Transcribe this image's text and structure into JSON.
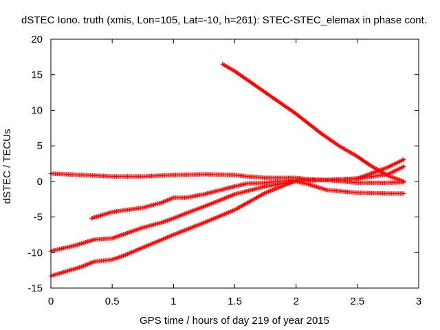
{
  "chart_data": {
    "type": "scatter",
    "title": "dSTEC Iono. truth (xmis, Lon=105, Lat=-10, h=261): STEC-STEC_elemax in phase cont.",
    "xlabel": "GPS time / hours of day 219 of year 2015",
    "ylabel": "dSTEC  / TECUs",
    "xlim": [
      0,
      3
    ],
    "ylim": [
      -15,
      20
    ],
    "x_ticks": [
      0,
      0.5,
      1,
      1.5,
      2,
      2.5,
      3
    ],
    "x_tick_labels": [
      "0",
      "0.5",
      "1",
      "1.5",
      "2",
      "2.5",
      "3"
    ],
    "y_ticks": [
      -15,
      -10,
      -5,
      0,
      5,
      10,
      15,
      20
    ],
    "y_tick_labels": [
      "-15",
      "-10",
      "-5",
      "0",
      "5",
      "10",
      "15",
      "20"
    ],
    "grid": false,
    "marker": "plus",
    "color": "#ff0000",
    "series": [
      {
        "x": [
          0.0,
          0.25,
          0.5,
          0.75,
          1.0,
          1.25,
          1.5,
          1.6,
          1.75,
          2.0,
          2.1,
          2.25,
          2.5,
          2.75,
          2.88
        ],
        "y": [
          1.1,
          0.9,
          0.7,
          0.7,
          0.9,
          1.0,
          0.9,
          0.7,
          0.5,
          0.5,
          0.3,
          0.2,
          0.4,
          1.0,
          2.1
        ]
      },
      {
        "x": [
          0.0,
          0.2,
          0.35,
          0.5,
          0.75,
          0.9,
          1.0,
          1.1,
          1.3,
          1.5,
          1.75,
          2.0,
          2.1,
          2.25,
          2.5,
          2.75,
          2.88
        ],
        "y": [
          -9.8,
          -9.0,
          -8.2,
          -8.0,
          -6.5,
          -5.8,
          -5.2,
          -4.5,
          -3.2,
          -1.8,
          -0.7,
          0.0,
          -0.4,
          -1.2,
          -1.6,
          -1.7,
          -1.7
        ]
      },
      {
        "x": [
          0.0,
          0.25,
          0.35,
          0.5,
          0.6,
          0.75,
          1.0,
          1.25,
          1.5,
          1.75,
          2.0,
          2.25,
          2.5,
          2.75,
          2.88
        ],
        "y": [
          -13.3,
          -12.0,
          -11.3,
          -11.0,
          -10.4,
          -9.3,
          -7.5,
          -5.8,
          -4.0,
          -1.6,
          0.1,
          0.2,
          0.4,
          2.0,
          3.1
        ]
      },
      {
        "x": [
          0.33,
          0.5,
          0.75,
          0.9,
          1.0,
          1.1,
          1.25,
          1.5,
          1.6,
          1.75,
          2.0,
          2.25,
          2.5,
          2.75,
          2.88
        ],
        "y": [
          -5.2,
          -4.3,
          -3.7,
          -3.0,
          -2.3,
          -2.3,
          -1.8,
          -0.7,
          -0.3,
          -0.2,
          0.2,
          0.2,
          -0.2,
          -0.2,
          -0.1
        ]
      },
      {
        "x": [
          1.4,
          1.5,
          1.75,
          2.0,
          2.2,
          2.35,
          2.5,
          2.6,
          2.75,
          2.88
        ],
        "y": [
          16.5,
          15.5,
          12.5,
          9.5,
          6.8,
          5.0,
          3.5,
          2.3,
          0.8,
          0.0
        ]
      }
    ]
  }
}
